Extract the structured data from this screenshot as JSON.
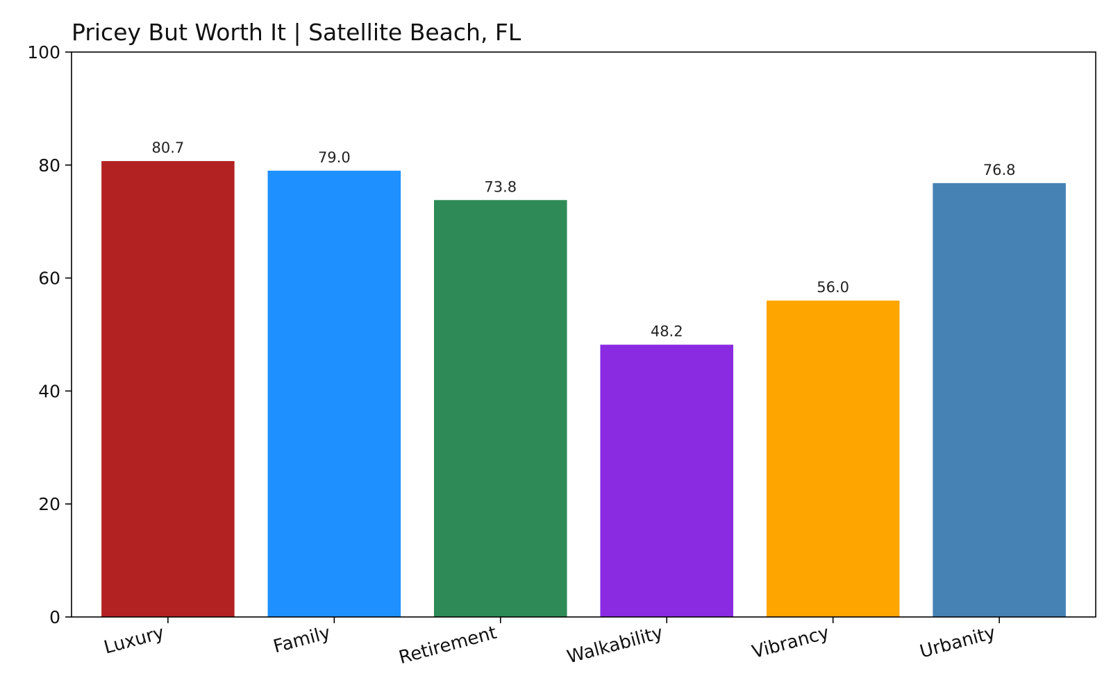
{
  "chart_data": {
    "type": "bar",
    "title": "Pricey But Worth It | Satellite Beach, FL",
    "xlabel": "",
    "ylabel": "",
    "categories": [
      "Luxury",
      "Family",
      "Retirement",
      "Walkability",
      "Vibrancy",
      "Urbanity"
    ],
    "values": [
      80.7,
      79.0,
      73.8,
      48.2,
      56.0,
      76.8
    ],
    "value_labels": [
      "80.7",
      "79.0",
      "73.8",
      "48.2",
      "56.0",
      "76.8"
    ],
    "colors": [
      "#b22222",
      "#1e90ff",
      "#2e8b57",
      "#8a2be2",
      "#ffa500",
      "#4682b4"
    ],
    "ylim": [
      0,
      100
    ],
    "yticks": [
      0,
      20,
      40,
      60,
      80,
      100
    ],
    "ytick_labels": [
      "0",
      "20",
      "40",
      "60",
      "80",
      "100"
    ],
    "grid": false,
    "legend": "none"
  }
}
